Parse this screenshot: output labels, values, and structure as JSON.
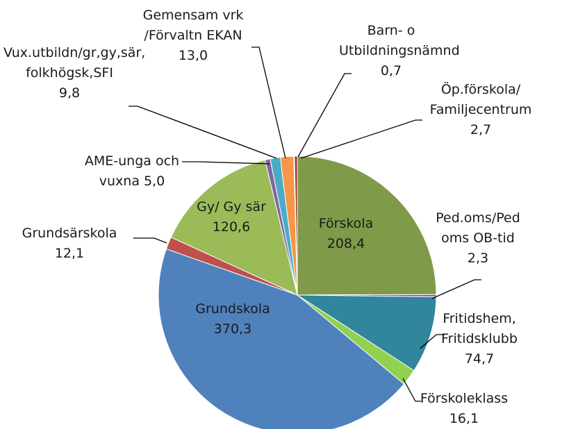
{
  "chart_data": {
    "type": "pie",
    "categories": [
      "Förskola",
      "Ped.oms/Ped oms OB-tid",
      "Fritidshem, Fritidsklubb",
      "Förskoleklass",
      "Grundskola",
      "Grundsärskola",
      "Gy/ Gy sär",
      "AME-unga och vuxna",
      "Vux.utbildn/gr,gy,sär, folkhögsk,SFI",
      "Gemensam vrk /Förvaltn EKAN",
      "Barn- o Utbildningsnämnd",
      "Öp.förskola/ Familjecentrum"
    ],
    "values": [
      208.4,
      2.3,
      74.7,
      16.1,
      370.3,
      12.1,
      120.6,
      5.0,
      9.8,
      13.0,
      0.7,
      2.7
    ],
    "value_labels": [
      "208,4",
      "2,3",
      "74,7",
      "16,1",
      "370,3",
      "12,1",
      "120,6",
      "5,0",
      "9,8",
      "13,0",
      "0,7",
      "2,7"
    ],
    "colors": [
      "#7f9a48",
      "#7e5fa0",
      "#31859c",
      "#92d050",
      "#4f81bd",
      "#c0504d",
      "#9bbb59",
      "#8064a2",
      "#4bacc6",
      "#f79646",
      "#1f497d",
      "#953735"
    ]
  }
}
